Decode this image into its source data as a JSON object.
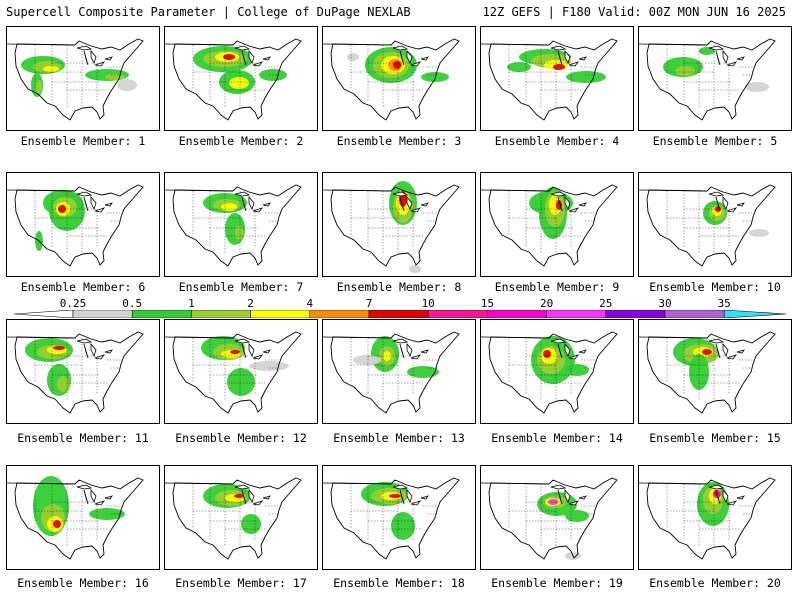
{
  "header": {
    "title": "Supercell Composite Parameter | College of DuPage NEXLAB",
    "run_info": "12Z GEFS | F180 Valid: 00Z MON JUN 16 2025"
  },
  "colorbar": {
    "labels": [
      "0.25",
      "0.5",
      "1",
      "2",
      "4",
      "7",
      "10",
      "15",
      "20",
      "25",
      "30",
      "35"
    ],
    "colors": [
      "#d3d3d3",
      "#32cd32",
      "#9acd32",
      "#ffff00",
      "#ff8c00",
      "#e60000",
      "#ff1493",
      "#ff00cc",
      "#ff33ff",
      "#8a00e6",
      "#b060d0",
      "#33e0ff"
    ]
  },
  "panels": [
    {
      "caption": "Ensemble Member: 1"
    },
    {
      "caption": "Ensemble Member: 2"
    },
    {
      "caption": "Ensemble Member: 3"
    },
    {
      "caption": "Ensemble Member: 4"
    },
    {
      "caption": "Ensemble Member: 5"
    },
    {
      "caption": "Ensemble Member: 6"
    },
    {
      "caption": "Ensemble Member: 7"
    },
    {
      "caption": "Ensemble Member: 8"
    },
    {
      "caption": "Ensemble Member: 9"
    },
    {
      "caption": "Ensemble Member: 10"
    },
    {
      "caption": "Ensemble Member: 11"
    },
    {
      "caption": "Ensemble Member: 12"
    },
    {
      "caption": "Ensemble Member: 13"
    },
    {
      "caption": "Ensemble Member: 14"
    },
    {
      "caption": "Ensemble Member: 15"
    },
    {
      "caption": "Ensemble Member: 16"
    },
    {
      "caption": "Ensemble Member: 17"
    },
    {
      "caption": "Ensemble Member: 18"
    },
    {
      "caption": "Ensemble Member: 19"
    },
    {
      "caption": "Ensemble Member: 20"
    }
  ]
}
